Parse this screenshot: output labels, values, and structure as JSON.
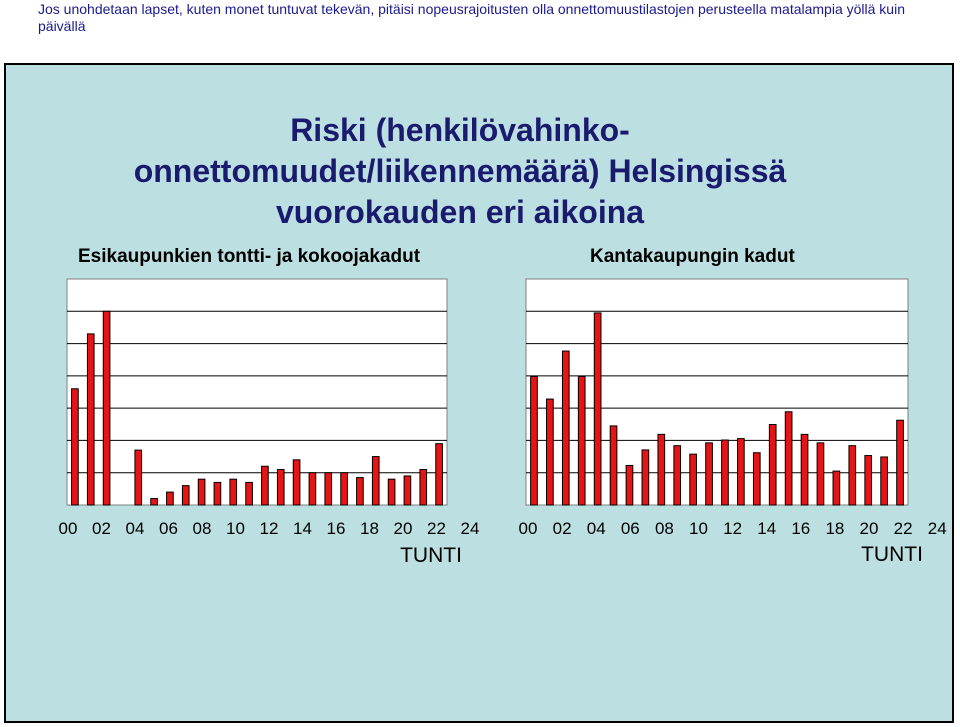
{
  "caption": "Jos unohdetaan lapset, kuten monet tuntuvat tekevän, pitäisi nopeusrajoitusten olla onnettomuustilastojen perusteella matalampia yöllä kuin päivällä",
  "title_lines": [
    "Riski (henkilövahinko-",
    "onnettomuudet/liikennemäärä) Helsingissä",
    "vuorokauden eri aikoina"
  ],
  "colors": {
    "bar": "#e81414",
    "background": "#bcdfe1",
    "plot": "#ffffff",
    "title": "#1a1a6e",
    "caption": "#1a1a8c"
  },
  "chart_data": [
    {
      "type": "bar",
      "title": "Esikaupunkien tontti- ja kokoojakadut",
      "xlabel": "TUNTI",
      "ylabel": "",
      "x_tick_labels": [
        "00",
        "02",
        "04",
        "06",
        "08",
        "10",
        "12",
        "14",
        "16",
        "18",
        "20",
        "22",
        "24"
      ],
      "categories": [
        "0",
        "1",
        "2",
        "3",
        "4",
        "5",
        "6",
        "7",
        "8",
        "9",
        "10",
        "11",
        "12",
        "13",
        "14",
        "15",
        "16",
        "17",
        "18",
        "19",
        "20",
        "21",
        "22",
        "23"
      ],
      "values": [
        3.6,
        5.3,
        6.0,
        0,
        1.7,
        0.2,
        0.4,
        0.6,
        0.8,
        0.7,
        0.8,
        0.7,
        1.2,
        1.1,
        1.4,
        1.0,
        1.0,
        1.0,
        0.85,
        1.5,
        0.8,
        0.9,
        1.1,
        1.9
      ],
      "ylim": [
        0,
        7
      ],
      "grid": true,
      "legend": false
    },
    {
      "type": "bar",
      "title": "Kantakaupungin kadut",
      "xlabel": "TUNTI",
      "ylabel": "",
      "x_tick_labels": [
        "00",
        "02",
        "04",
        "06",
        "08",
        "10",
        "12",
        "14",
        "16",
        "18",
        "20",
        "22",
        "24"
      ],
      "categories": [
        "0",
        "1",
        "2",
        "3",
        "4",
        "5",
        "6",
        "7",
        "8",
        "9",
        "10",
        "11",
        "12",
        "13",
        "14",
        "15",
        "16",
        "17",
        "18",
        "19",
        "20",
        "21",
        "22",
        "23"
      ],
      "values": [
        4.55,
        3.75,
        5.45,
        4.55,
        6.8,
        2.8,
        1.4,
        1.95,
        2.5,
        2.1,
        1.8,
        2.2,
        2.3,
        2.35,
        1.85,
        2.85,
        3.3,
        2.5,
        2.2,
        1.2,
        2.1,
        1.75,
        1.7,
        3.0
      ],
      "ylim": [
        0,
        8
      ],
      "grid": true,
      "legend": false
    }
  ]
}
